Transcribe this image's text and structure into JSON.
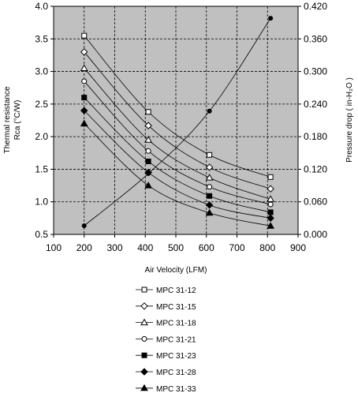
{
  "chart_data": {
    "type": "line",
    "xlabel": "Air Velocity (LFM)",
    "ylabel_left_line1": "Thermal resistance",
    "ylabel_left_line2": "Rca (°C/W)",
    "ylabel_right": "Pressure drop  ( in-H₂O )",
    "xlim": [
      100,
      900
    ],
    "xticks": [
      "100",
      "200",
      "300",
      "400",
      "500",
      "600",
      "700",
      "800",
      "900"
    ],
    "ylim_left": [
      0.5,
      4.0
    ],
    "yticks_left": [
      "0.5",
      "1.0",
      "1.5",
      "2.0",
      "2.5",
      "3.0",
      "3.5",
      "4.0"
    ],
    "ylim_right": [
      0.0,
      0.42
    ],
    "yticks_right": [
      "0.000",
      "0.060",
      "0.120",
      "0.180",
      "0.240",
      "0.300",
      "0.360",
      "0.420"
    ],
    "grid": true,
    "legend_position": "below",
    "plot_background": "#c0c0c0",
    "series": [
      {
        "name": "MPC 31-12",
        "marker": "square-open",
        "x": [
          200,
          410,
          610,
          810
        ],
        "y": [
          3.55,
          2.38,
          1.72,
          1.38
        ]
      },
      {
        "name": "MPC 31-15",
        "marker": "diamond-open",
        "x": [
          200,
          410,
          610,
          810
        ],
        "y": [
          3.3,
          2.17,
          1.53,
          1.2
        ]
      },
      {
        "name": "MPC 31-18",
        "marker": "triangle-open",
        "x": [
          200,
          410,
          610,
          810
        ],
        "y": [
          3.05,
          1.95,
          1.37,
          1.04
        ]
      },
      {
        "name": "MPC 31-21",
        "marker": "circle-open",
        "x": [
          200,
          410,
          610,
          810
        ],
        "y": [
          2.85,
          1.78,
          1.23,
          0.96
        ]
      },
      {
        "name": "MPC 31-23",
        "marker": "square-filled",
        "x": [
          200,
          410,
          610,
          810
        ],
        "y": [
          2.6,
          1.62,
          1.09,
          0.84
        ]
      },
      {
        "name": "MPC 31-28",
        "marker": "diamond-filled",
        "x": [
          200,
          410,
          610,
          810
        ],
        "y": [
          2.4,
          1.45,
          0.95,
          0.75
        ]
      },
      {
        "name": "MPC 31-33",
        "marker": "triangle-filled",
        "x": [
          200,
          410,
          610,
          810
        ],
        "y": [
          2.2,
          1.25,
          0.83,
          0.63
        ]
      }
    ],
    "pressure_series": {
      "axis": "right",
      "marker": "circle-filled",
      "x": [
        200,
        410,
        610,
        810
      ],
      "y": [
        0.016,
        0.112,
        0.227,
        0.398
      ]
    }
  }
}
